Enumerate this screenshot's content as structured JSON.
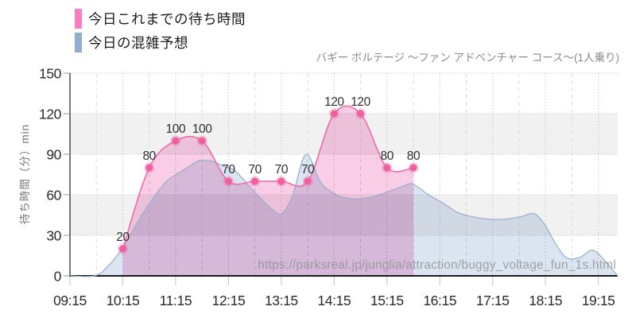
{
  "title": "バギー ボルテージ ～ファン アドベンチャー コース～(1人乗り)",
  "watermark": "https://parksreal.jp/junglia/attraction/buggy_voltage_fun_1s.html",
  "legend": {
    "actual_label": "今日これまでの待ち時間",
    "forecast_label": "今日の混雑予想"
  },
  "colors": {
    "legend_actual": "#f97fbe",
    "legend_forecast": "#92aecd",
    "band": "#f1f1f1",
    "grid_dot": "#c9c9c9",
    "grid_dash": "#dcdcdc",
    "axis_y": "#4a4a4a",
    "axis_x": "#1a1a1a",
    "tick_stub_y": "#9a9a9a",
    "tick_stub_x": "#c4c4c4"
  },
  "chart_data": {
    "type": "area",
    "title": "バギー ボルテージ ～ファン アドベンチャー コース～(1人乗り)",
    "ylabel": "待ち時間（分）min",
    "ylim": [
      0,
      150
    ],
    "y_ticks": [
      0,
      30,
      60,
      90,
      120,
      150
    ],
    "x_ticks": [
      "09:15",
      "10:15",
      "11:15",
      "12:15",
      "13:15",
      "14:15",
      "15:15",
      "16:15",
      "17:15",
      "18:15",
      "19:15"
    ],
    "x_domain": [
      "09:15",
      "19:37"
    ],
    "grid": true,
    "legend_position": "top-left",
    "band_pairs": [
      [
        30,
        60
      ],
      [
        90,
        120
      ]
    ],
    "series": [
      {
        "name": "今日これまでの待ち時間",
        "type": "line",
        "show_markers": true,
        "show_labels": true,
        "color": "#ef6aa9",
        "marker_color": "#ee5f9f",
        "marker_halo": "rgba(238,95,158,0.33)",
        "fill": "#f9cde6",
        "points": [
          [
            "10:15",
            20
          ],
          [
            "10:45",
            80
          ],
          [
            "11:15",
            100
          ],
          [
            "11:45",
            100
          ],
          [
            "12:15",
            70
          ],
          [
            "12:45",
            70
          ],
          [
            "13:15",
            70
          ],
          [
            "13:45",
            70
          ],
          [
            "14:15",
            120
          ],
          [
            "14:45",
            120
          ],
          [
            "15:15",
            80
          ],
          [
            "15:45",
            80
          ]
        ]
      },
      {
        "name": "今日の混雑予想",
        "type": "area",
        "show_markers": false,
        "show_labels": false,
        "color": "#96aecd",
        "fill": "#dbe5f1",
        "points": [
          [
            "09:15",
            0
          ],
          [
            "09:43",
            0
          ],
          [
            "09:58",
            7
          ],
          [
            "10:15",
            21
          ],
          [
            "10:32",
            40
          ],
          [
            "10:48",
            56
          ],
          [
            "11:05",
            70
          ],
          [
            "11:28",
            80
          ],
          [
            "11:41",
            85
          ],
          [
            "11:55",
            85
          ],
          [
            "12:10",
            81
          ],
          [
            "12:22",
            78
          ],
          [
            "12:42",
            64
          ],
          [
            "13:00",
            52
          ],
          [
            "13:15",
            46
          ],
          [
            "13:28",
            60
          ],
          [
            "13:43",
            90
          ],
          [
            "14:00",
            69
          ],
          [
            "14:18",
            60
          ],
          [
            "14:35",
            57
          ],
          [
            "14:55",
            58
          ],
          [
            "15:15",
            62
          ],
          [
            "15:32",
            66
          ],
          [
            "15:44",
            68
          ],
          [
            "16:02",
            60
          ],
          [
            "16:18",
            54
          ],
          [
            "16:35",
            47
          ],
          [
            "16:50",
            44
          ],
          [
            "17:10",
            42
          ],
          [
            "17:30",
            42
          ],
          [
            "17:48",
            44
          ],
          [
            "18:02",
            46
          ],
          [
            "18:14",
            38
          ],
          [
            "18:28",
            22
          ],
          [
            "18:40",
            13
          ],
          [
            "18:55",
            14
          ],
          [
            "19:09",
            19
          ],
          [
            "19:24",
            10
          ],
          [
            "19:37",
            0
          ]
        ]
      }
    ]
  }
}
